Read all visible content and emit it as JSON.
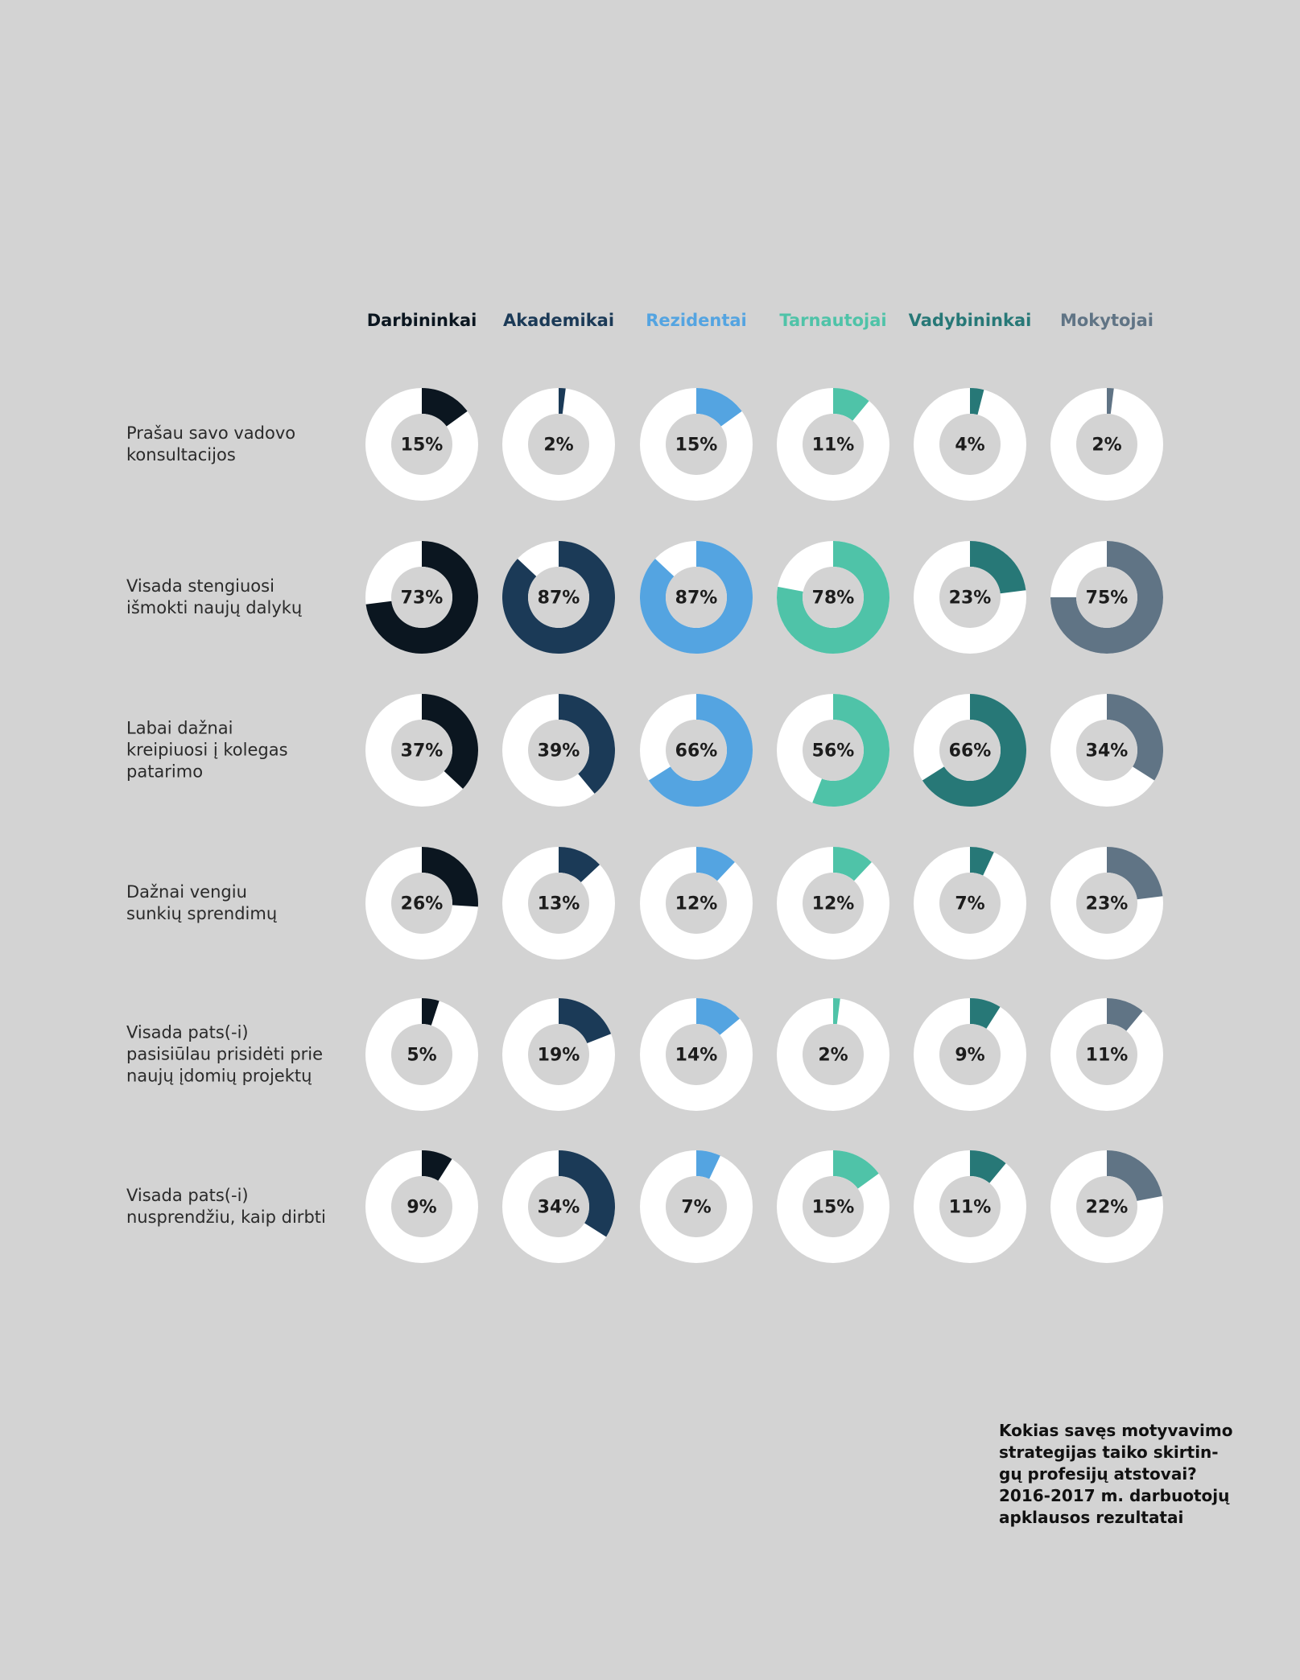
{
  "chart_data": {
    "type": "donut-grid",
    "columns": [
      {
        "name": "Darbininkai",
        "color": "#0b1620"
      },
      {
        "name": "Akademikai",
        "color": "#1b3a57"
      },
      {
        "name": "Rezidentai",
        "color": "#54a4e1"
      },
      {
        "name": "Tarnautojai",
        "color": "#4fc3a8"
      },
      {
        "name": "Vadybininkai",
        "color": "#277877"
      },
      {
        "name": "Mokytojai",
        "color": "#607485"
      }
    ],
    "rows": [
      {
        "label": "Prašau savo vadovo\nkonsultacijos",
        "values": [
          15,
          2,
          15,
          11,
          4,
          2
        ]
      },
      {
        "label": "Visada stengiuosi\nišmokti naujų dalykų",
        "values": [
          73,
          87,
          87,
          78,
          23,
          75
        ]
      },
      {
        "label": "Labai dažnai\nkreipiuosi į kolegas\npatarimo",
        "values": [
          37,
          39,
          66,
          56,
          66,
          34
        ]
      },
      {
        "label": "Dažnai vengiu\nsunkių sprendimų",
        "values": [
          26,
          13,
          12,
          12,
          7,
          23
        ]
      },
      {
        "label": "Visada pats(-i)\npasisiūlau prisidėti prie\nnaujų įdomių projektų",
        "values": [
          5,
          19,
          14,
          2,
          9,
          11
        ]
      },
      {
        "label": "Visada pats(-i)\nnusprendžiu, kaip dirbti",
        "values": [
          9,
          34,
          7,
          15,
          11,
          22
        ]
      }
    ],
    "value_suffix": "%",
    "track_color": "#ffffff",
    "hole_color": "#d3d3d3",
    "background": "#d3d3d3"
  },
  "caption": "Kokias savęs motyvavimo\nstrategijas taiko skirtin-\ngų profesijų atstovai?\n2016-2017 m. darbuotojų\napklausos rezultatai"
}
